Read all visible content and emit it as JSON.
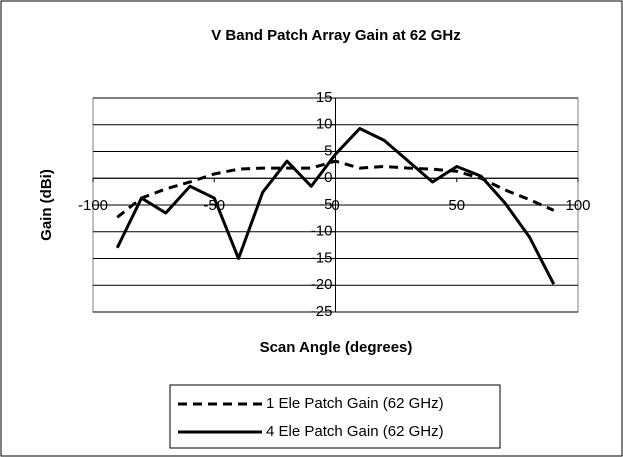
{
  "chart_data": {
    "type": "line",
    "title": "V Band Patch Array Gain at 62 GHz",
    "x_label": "Scan Angle (degrees)",
    "y_label": "Gain (dBi)",
    "x": [
      -90,
      -80,
      -70,
      -60,
      -50,
      -40,
      -30,
      -20,
      -10,
      0,
      10,
      20,
      30,
      40,
      50,
      60,
      70,
      80,
      90
    ],
    "series": [
      {
        "name": "1 Ele Patch Gain (62 GHz)",
        "color": "#000000",
        "dash": true,
        "values": [
          -7.3,
          -3.7,
          -2,
          -0.7,
          0.8,
          1.7,
          1.9,
          1.9,
          1.9,
          3.2,
          1.9,
          2.2,
          1.9,
          1.7,
          1.3,
          0,
          -2.2,
          -4,
          -6
        ]
      },
      {
        "name": "4 Ele Patch Gain (62 GHz)",
        "color": "#000000",
        "dash": false,
        "values": [
          -13,
          -3.7,
          -6.5,
          -1.5,
          -3.7,
          -15,
          -2.6,
          3.2,
          -1.5,
          4.5,
          9.3,
          7.1,
          3.2,
          -0.7,
          2.2,
          0.4,
          -4.7,
          -11,
          -19.8
        ]
      }
    ],
    "xlim": [
      -100,
      100
    ],
    "xticks": [
      -100,
      -50,
      0,
      50,
      100
    ],
    "ylim": [
      -25,
      15
    ],
    "yticks": [
      15,
      10,
      5,
      0,
      -5,
      -10,
      -15,
      -20,
      -25
    ],
    "grid": true,
    "legend": "bottom"
  }
}
